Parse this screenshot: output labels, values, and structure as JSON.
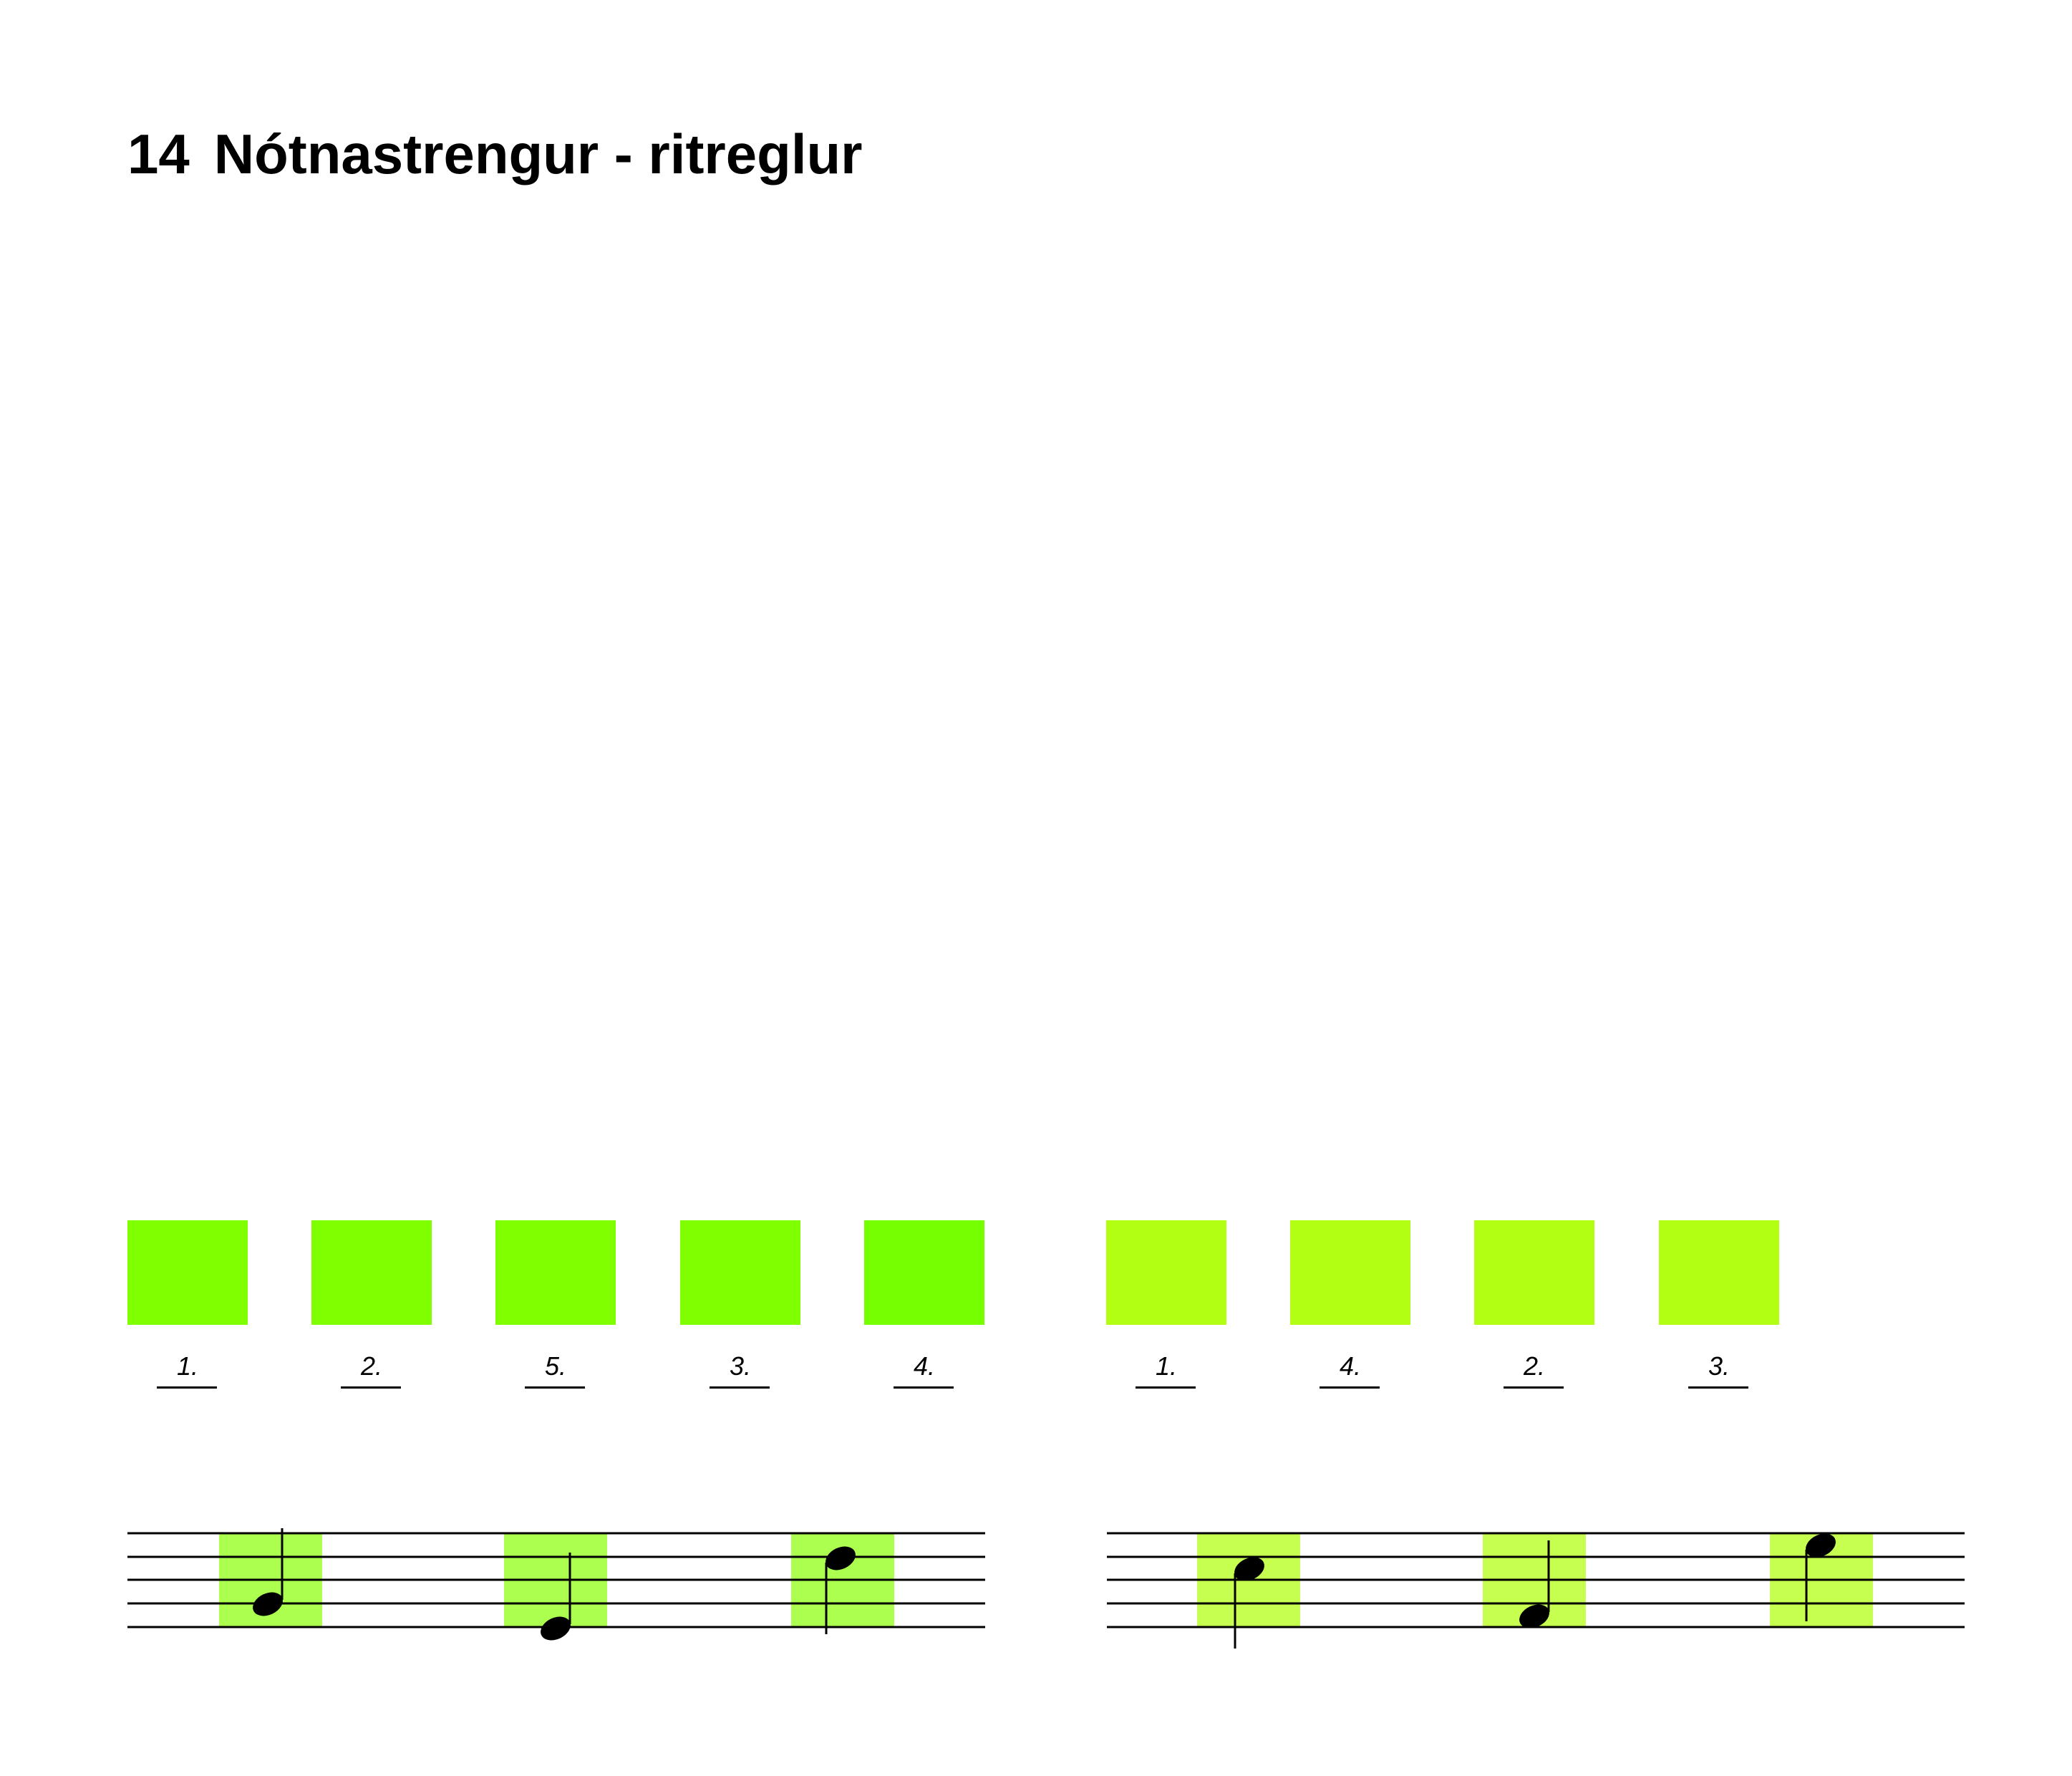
{
  "page": {
    "title_number": "14",
    "title_text": "Nótnastrengur - ritreglur"
  },
  "colors": {
    "swatch_green_a": "#80ff00",
    "swatch_green_a_last": "#75ff00",
    "swatch_green_b": "#b2ff14",
    "staff_highlight_a": "#adff4f",
    "staff_highlight_b": "#c6ff4f",
    "ink": "#000000"
  },
  "swatches_left": [
    {
      "label": "1."
    },
    {
      "label": "2."
    },
    {
      "label": "5."
    },
    {
      "label": "3."
    },
    {
      "label": "4."
    }
  ],
  "swatches_right": [
    {
      "label": "1."
    },
    {
      "label": "4."
    },
    {
      "label": "2."
    },
    {
      "label": "3."
    }
  ],
  "staff_left": {
    "notes": [
      {
        "name": "quarter-note",
        "stem": "up"
      },
      {
        "name": "quarter-note",
        "stem": "up"
      },
      {
        "name": "quarter-note",
        "stem": "down"
      }
    ]
  },
  "staff_right": {
    "notes": [
      {
        "name": "quarter-note",
        "stem": "down"
      },
      {
        "name": "quarter-note",
        "stem": "up"
      },
      {
        "name": "quarter-note",
        "stem": "down"
      }
    ]
  }
}
